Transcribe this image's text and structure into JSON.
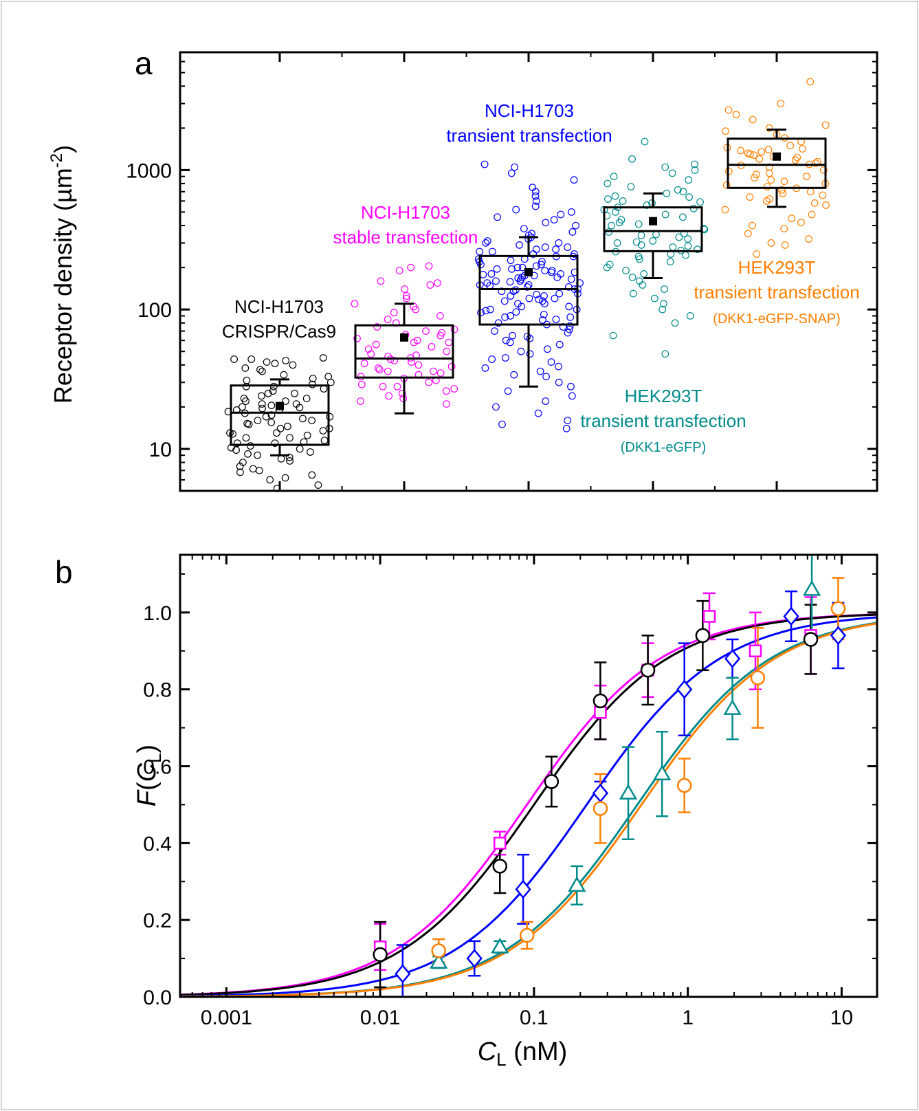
{
  "chart_data": [
    {
      "type": "box",
      "panel_label": "a",
      "ylabel": "Receptor density (µm",
      "ylabel_sup": "-2",
      "ylabel_end": ")",
      "y_scale": "log",
      "ylim": [
        5,
        7000
      ],
      "y_ticks": [
        10,
        100,
        1000
      ],
      "y_tick_labels": [
        "10",
        "100",
        "1000"
      ],
      "x_axis_labels_shown": false,
      "groups": [
        {
          "label_lines": [
            "NCI-H1703",
            "CRISPR/Cas9"
          ],
          "color": "#000000",
          "q1": 10.7,
          "median": 18.2,
          "q3": 28.5,
          "mean": 20.3,
          "whisker_low": 9.0,
          "whisker_high": 31.5,
          "points": [
            45,
            44,
            43,
            42,
            41,
            40,
            38,
            36,
            34,
            33,
            32,
            31,
            30,
            29,
            28,
            27,
            26,
            25,
            24,
            23,
            22,
            21,
            20.5,
            20,
            19.5,
            19,
            18.5,
            18,
            17.5,
            17,
            16.5,
            16,
            15.5,
            15,
            14.5,
            14,
            13.5,
            13,
            12.5,
            12,
            11.5,
            11,
            10.5,
            10,
            9.5,
            9,
            8.5,
            8,
            7.5,
            7,
            6.8,
            6.5,
            6.2,
            6,
            5.5,
            5.2,
            44,
            37,
            28,
            22,
            19,
            16,
            13,
            11,
            9.8,
            8.2,
            7.2,
            25,
            21,
            17,
            14,
            12,
            10.2,
            9.2,
            8.7,
            23,
            19.8,
            15.2,
            12.8,
            11.2
          ]
        },
        {
          "label_lines": [
            "NCI-H1703",
            "stable transfection"
          ],
          "color": "#ff00ff",
          "q1": 32.5,
          "median": 44.5,
          "q3": 77,
          "mean": 63,
          "whisker_low": 18,
          "whisker_high": 110,
          "points": [
            205,
            200,
            190,
            160,
            155,
            150,
            140,
            125,
            120,
            110,
            105,
            100,
            95,
            90,
            85,
            80,
            75,
            72,
            70,
            68,
            65,
            62,
            60,
            58,
            56,
            54,
            52,
            50,
            48,
            46,
            45,
            44,
            43,
            42,
            41,
            40,
            39,
            38,
            37,
            36,
            35,
            34,
            33,
            32,
            31,
            30,
            29,
            28,
            27,
            26,
            25,
            24,
            23,
            22,
            21,
            28,
            36,
            47,
            58,
            66
          ]
        },
        {
          "label_lines": [
            "NCI-H1703",
            "transient transfection"
          ],
          "color": "#0000ff",
          "q1": 78,
          "median": 140,
          "q3": 242,
          "mean": 185,
          "whisker_low": 28,
          "whisker_high": 330,
          "points": [
            1100,
            1050,
            950,
            850,
            750,
            700,
            650,
            600,
            550,
            520,
            500,
            480,
            460,
            440,
            420,
            400,
            380,
            360,
            340,
            330,
            320,
            310,
            300,
            290,
            280,
            270,
            260,
            250,
            240,
            230,
            220,
            210,
            200,
            195,
            190,
            185,
            180,
            175,
            170,
            165,
            160,
            155,
            150,
            145,
            140,
            135,
            130,
            125,
            120,
            115,
            110,
            105,
            100,
            96,
            92,
            88,
            84,
            80,
            76,
            72,
            68,
            64,
            60,
            56,
            52,
            48,
            45,
            42,
            39,
            36,
            33,
            30,
            28,
            26,
            24,
            22,
            20,
            18,
            16,
            15,
            14,
            160,
            150,
            140,
            130,
            120,
            110,
            100,
            90,
            85,
            170,
            180,
            190,
            200,
            210,
            220,
            230,
            240,
            250,
            260,
            125,
            135,
            145,
            155,
            165,
            175,
            185,
            195,
            105,
            95,
            115,
            75,
            65,
            58,
            50,
            44,
            38,
            34,
            300,
            280,
            350,
            270,
            225,
            205,
            118,
            128,
            138,
            148,
            158,
            168,
            178,
            98,
            88,
            78,
            70,
            62
          ]
        },
        {
          "label_lines": [
            "HEK293T",
            "transient transfection",
            "(DKK1-eGFP)"
          ],
          "color": "#008b8b",
          "q1": 262,
          "median": 365,
          "q3": 540,
          "mean": 430,
          "whisker_low": 168,
          "whisker_high": 680,
          "points": [
            1600,
            1200,
            1100,
            1050,
            1000,
            950,
            900,
            850,
            800,
            760,
            720,
            680,
            650,
            620,
            600,
            580,
            560,
            540,
            520,
            500,
            480,
            460,
            440,
            420,
            400,
            380,
            360,
            350,
            340,
            330,
            320,
            310,
            300,
            290,
            280,
            270,
            260,
            250,
            240,
            230,
            220,
            210,
            200,
            190,
            180,
            170,
            160,
            150,
            140,
            130,
            120,
            110,
            100,
            90,
            80,
            65,
            48,
            345,
            375,
            410,
            470,
            530,
            590,
            640,
            700,
            305,
            285,
            265,
            245
          ]
        },
        {
          "label_lines": [
            "HEK293T",
            "transient transfection",
            "(DKK1-eGFP-SNAP)"
          ],
          "color": "#ff7f00",
          "q1": 745,
          "median": 1090,
          "q3": 1680,
          "mean": 1250,
          "whisker_low": 545,
          "whisker_high": 1950,
          "points": [
            4300,
            3000,
            2700,
            2500,
            2300,
            2100,
            2000,
            1900,
            1800,
            1700,
            1600,
            1500,
            1450,
            1400,
            1350,
            1300,
            1250,
            1200,
            1150,
            1100,
            1050,
            1000,
            950,
            900,
            850,
            800,
            760,
            720,
            680,
            640,
            600,
            560,
            520,
            480,
            450,
            420,
            400,
            380,
            350,
            320,
            300,
            290,
            250,
            1080,
            1120,
            1180,
            1230,
            1280,
            1320,
            1380,
            1420,
            980,
            930,
            880,
            830,
            780,
            740,
            700,
            660,
            620,
            580
          ]
        }
      ]
    },
    {
      "type": "scatter_with_fit",
      "panel_label": "b",
      "xlabel": "C",
      "xlabel_sub": "L",
      "xlabel_unit": " (nM)",
      "ylabel_f": "F",
      "ylabel_c": "C",
      "ylabel_sub": "L",
      "x_scale": "log",
      "xlim": [
        0.0005,
        17
      ],
      "ylim": [
        0.0,
        1.15
      ],
      "x_ticks": [
        0.001,
        0.01,
        0.1,
        1,
        10
      ],
      "x_tick_labels": [
        "0.001",
        "0.01",
        "0.1",
        "1",
        "10"
      ],
      "y_ticks": [
        0.0,
        0.2,
        0.4,
        0.6,
        0.8,
        1.0
      ],
      "y_tick_labels": [
        "0.0",
        "0.2",
        "0.4",
        "0.6",
        "0.8",
        "1.0"
      ],
      "series": [
        {
          "color": "#ff00ff",
          "marker": "square",
          "fit_K": 0.09,
          "x": [
            0.01,
            0.06,
            0.27,
            0.55,
            1.38,
            2.75,
            6.3
          ],
          "y": [
            0.13,
            0.4,
            0.74,
            0.85,
            0.99,
            0.9,
            0.94
          ],
          "err": [
            0.06,
            0.03,
            0.07,
            0.07,
            0.06,
            0.1,
            0.1
          ]
        },
        {
          "color": "#000000",
          "marker": "circle",
          "fit_K": 0.1,
          "x": [
            0.01,
            0.06,
            0.13,
            0.27,
            0.55,
            1.25,
            6.3
          ],
          "y": [
            0.11,
            0.34,
            0.56,
            0.77,
            0.85,
            0.94,
            0.93
          ],
          "err": [
            0.085,
            0.07,
            0.065,
            0.1,
            0.09,
            0.09,
            0.09
          ]
        },
        {
          "color": "#0000ff",
          "marker": "diamond",
          "fit_K": 0.22,
          "x": [
            0.014,
            0.041,
            0.085,
            0.27,
            0.95,
            1.95,
            4.7,
            9.5
          ],
          "y": [
            0.06,
            0.1,
            0.28,
            0.53,
            0.8,
            0.88,
            0.99,
            0.94
          ],
          "err": [
            0.075,
            0.045,
            0.09,
            0.03,
            0.12,
            0.05,
            0.065,
            0.085
          ]
        },
        {
          "color": "#008b8b",
          "marker": "triangle",
          "fit_K": 0.47,
          "x": [
            0.024,
            0.06,
            0.19,
            0.41,
            0.68,
            1.95,
            6.4
          ],
          "y": [
            0.09,
            0.13,
            0.29,
            0.53,
            0.58,
            0.75,
            1.06
          ],
          "err": [
            0.015,
            0.015,
            0.05,
            0.12,
            0.11,
            0.08,
            0.12
          ]
        },
        {
          "color": "#ff7f00",
          "marker": "circle",
          "fit_K": 0.5,
          "x": [
            0.024,
            0.09,
            0.27,
            0.95,
            2.85,
            9.5
          ],
          "y": [
            0.12,
            0.16,
            0.49,
            0.55,
            0.83,
            1.01
          ],
          "err": [
            0.03,
            0.035,
            0.09,
            0.07,
            0.13,
            0.08
          ]
        }
      ]
    }
  ]
}
